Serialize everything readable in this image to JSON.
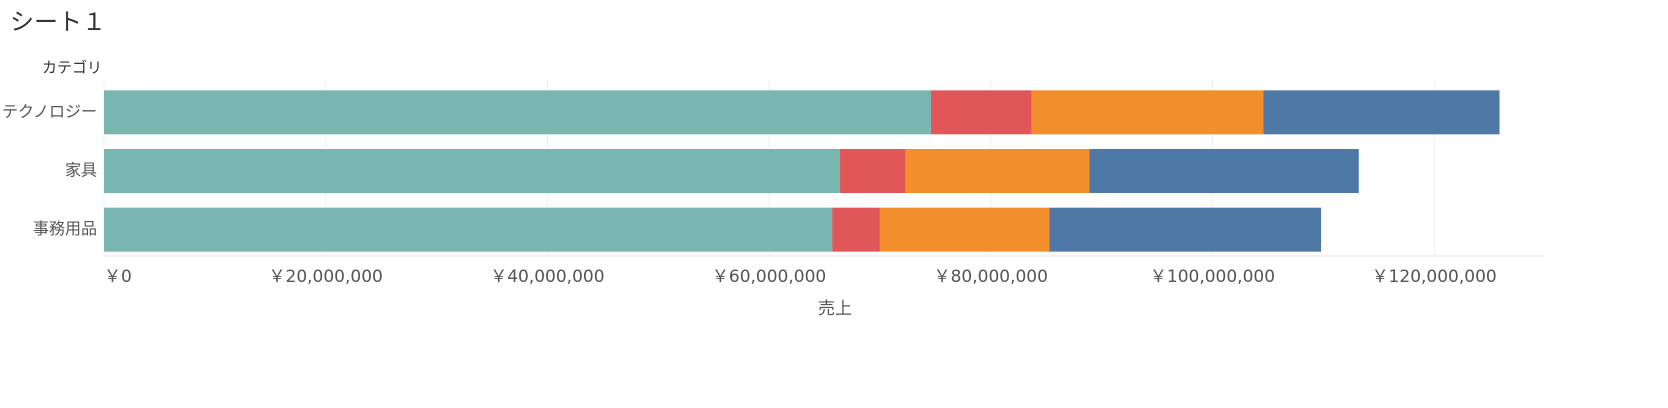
{
  "chart_data": {
    "type": "stacked-barh",
    "title": "シート１",
    "category_label": "カテゴリ",
    "x_label": "売上",
    "categories": [
      "テクノロジー",
      "家具",
      "事務用品"
    ],
    "series": [
      {
        "color": "#79b6b0",
        "values": [
          74600000,
          66400000,
          65700000
        ]
      },
      {
        "color": "#e15759",
        "values": [
          9100000,
          5900000,
          4300000
        ]
      },
      {
        "color": "#f28e2b",
        "values": [
          20900000,
          16600000,
          15300000
        ]
      },
      {
        "color": "#4e79a7",
        "values": [
          21300000,
          24300000,
          24500000
        ]
      }
    ],
    "xlim": [
      0,
      130000000
    ],
    "xticks": [
      {
        "value": 0,
        "label": "￥0"
      },
      {
        "value": 20000000,
        "label": "￥20,000,000"
      },
      {
        "value": 40000000,
        "label": "￥40,000,000"
      },
      {
        "value": 60000000,
        "label": "￥60,000,000"
      },
      {
        "value": 80000000,
        "label": "￥80,000,000"
      },
      {
        "value": 100000000,
        "label": "￥100,000,000"
      },
      {
        "value": 120000000,
        "label": "￥120,000,000"
      }
    ],
    "grid": true
  }
}
